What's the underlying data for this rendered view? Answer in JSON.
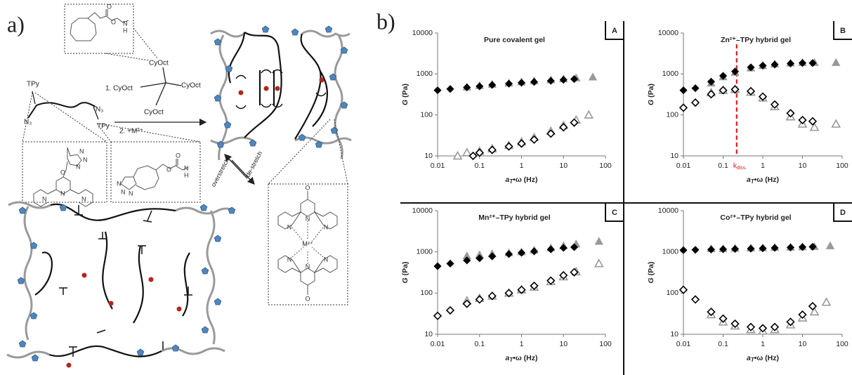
{
  "panel_labels": {
    "a": "a)",
    "b": "b)"
  },
  "diagram": {
    "crosslinker_arms": [
      "CyOct",
      "CyOct",
      "CyOct"
    ],
    "step_1": "1. CyOct",
    "step_2": "2. +M²⁺",
    "polymer_ends": [
      "TPy",
      "TPy",
      "N₃",
      "N₃"
    ],
    "carbamate_atoms": [
      "O",
      "O",
      "N",
      "H"
    ],
    "triazole_atoms": [
      "N",
      "N",
      "N",
      "O",
      "N",
      "N",
      "N"
    ],
    "fused_atoms": [
      "N",
      "N",
      "N",
      "O",
      "O",
      "N",
      "H"
    ],
    "forward_arrow": "overstretch",
    "back_arrow": "de-stretch",
    "complex_atoms": [
      "O",
      "N",
      "N",
      "N",
      "N",
      "N",
      "N",
      "O"
    ],
    "metal": "M²⁺"
  },
  "chart_data": [
    {
      "type": "scatter",
      "panel_label": "A",
      "title": "Pure covalent gel",
      "x_label": {
        "symbol": "a",
        "subscript": "T",
        "rest": "•ω (Hz)"
      },
      "y_label": {
        "symbol": "G",
        "rest": "(Pa)"
      },
      "xscale": "log",
      "yscale": "log",
      "xlim": [
        0.01,
        100
      ],
      "ylim": [
        10,
        10000
      ],
      "xticks": [
        0.01,
        0.1,
        1,
        10,
        100
      ],
      "yticks": [
        10,
        100,
        1000,
        10000
      ],
      "series": [
        {
          "color": "#999999",
          "marker": "triangle",
          "filled": true,
          "x": [
            0.05,
            0.1,
            0.2,
            0.5,
            1,
            2,
            5,
            10,
            20,
            50
          ],
          "values": [
            480,
            520,
            560,
            600,
            640,
            680,
            720,
            760,
            800,
            840
          ]
        },
        {
          "color": "#999999",
          "marker": "triangle",
          "filled": false,
          "x": [
            0.03,
            0.05,
            0.1,
            0.2,
            0.5,
            1,
            2,
            5,
            10,
            20,
            40
          ],
          "values": [
            10,
            12,
            13,
            15,
            18,
            22,
            28,
            40,
            55,
            75,
            100
          ]
        },
        {
          "color": "#000000",
          "marker": "diamond",
          "filled": true,
          "x": [
            0.01,
            0.02,
            0.05,
            0.1,
            0.2,
            0.5,
            1,
            2,
            5,
            10,
            18
          ],
          "values": [
            400,
            430,
            470,
            500,
            540,
            580,
            610,
            640,
            680,
            720,
            750
          ]
        },
        {
          "color": "#000000",
          "marker": "diamond",
          "filled": false,
          "x": [
            0.07,
            0.1,
            0.2,
            0.5,
            1,
            2,
            5,
            10,
            18
          ],
          "values": [
            10,
            12,
            14,
            17,
            20,
            25,
            35,
            50,
            65
          ]
        }
      ]
    },
    {
      "type": "scatter",
      "panel_label": "B",
      "title": "Zn²⁺–TPy hybrid gel",
      "x_label": {
        "symbol": "a",
        "subscript": "T",
        "rest": "•ω (Hz)"
      },
      "y_label": {
        "symbol": "G",
        "rest": "(Pa)"
      },
      "xscale": "log",
      "yscale": "log",
      "xlim": [
        0.01,
        100
      ],
      "ylim": [
        10,
        10000
      ],
      "xticks": [
        0.01,
        0.1,
        1,
        10,
        100
      ],
      "yticks": [
        10,
        100,
        1000,
        10000
      ],
      "annotation": {
        "x": 0.22,
        "text": "k",
        "subscript": "diss.",
        "color": "#d62020"
      },
      "series": [
        {
          "color": "#999999",
          "marker": "triangle",
          "filled": true,
          "x": [
            0.05,
            0.1,
            0.2,
            0.5,
            1,
            2,
            5,
            10,
            20,
            70
          ],
          "values": [
            600,
            850,
            1100,
            1400,
            1600,
            1750,
            1850,
            1900,
            1900,
            1900
          ]
        },
        {
          "color": "#999999",
          "marker": "triangle",
          "filled": false,
          "x": [
            0.05,
            0.1,
            0.2,
            0.5,
            1,
            2,
            5,
            10,
            20,
            70
          ],
          "values": [
            350,
            400,
            420,
            360,
            260,
            160,
            90,
            60,
            50,
            60
          ]
        },
        {
          "color": "#000000",
          "marker": "diamond",
          "filled": true,
          "x": [
            0.01,
            0.02,
            0.05,
            0.1,
            0.2,
            0.5,
            1,
            2,
            5,
            10,
            18
          ],
          "values": [
            400,
            450,
            650,
            900,
            1150,
            1450,
            1600,
            1700,
            1800,
            1850,
            1850
          ]
        },
        {
          "color": "#000000",
          "marker": "diamond",
          "filled": false,
          "x": [
            0.01,
            0.02,
            0.05,
            0.1,
            0.2,
            0.5,
            1,
            2,
            5,
            10,
            18
          ],
          "values": [
            150,
            200,
            320,
            400,
            420,
            380,
            280,
            180,
            110,
            75,
            70
          ]
        }
      ]
    },
    {
      "type": "scatter",
      "panel_label": "C",
      "title": "Mn²⁺–TPy hybrid gel",
      "x_label": {
        "symbol": "a",
        "subscript": "T",
        "rest": "•ω (Hz)"
      },
      "y_label": {
        "symbol": "G",
        "rest": "(Pa)"
      },
      "xscale": "log",
      "yscale": "log",
      "xlim": [
        0.01,
        100
      ],
      "ylim": [
        10,
        10000
      ],
      "xticks": [
        0.01,
        0.1,
        1,
        10,
        100
      ],
      "yticks": [
        10,
        100,
        1000,
        10000
      ],
      "series": [
        {
          "color": "#999999",
          "marker": "triangle",
          "filled": true,
          "x": [
            0.05,
            0.1,
            0.2,
            0.5,
            1,
            2,
            5,
            10,
            20,
            70
          ],
          "values": [
            800,
            850,
            900,
            950,
            1000,
            1100,
            1250,
            1400,
            1550,
            1800
          ]
        },
        {
          "color": "#999999",
          "marker": "triangle",
          "filled": false,
          "x": [
            0.05,
            0.1,
            0.2,
            0.5,
            1,
            2,
            5,
            10,
            20,
            70
          ],
          "values": [
            65,
            75,
            85,
            100,
            120,
            140,
            190,
            250,
            330,
            520
          ]
        },
        {
          "color": "#000000",
          "marker": "diamond",
          "filled": true,
          "x": [
            0.01,
            0.02,
            0.05,
            0.1,
            0.2,
            0.5,
            1,
            2,
            5,
            10,
            18
          ],
          "values": [
            450,
            520,
            620,
            700,
            780,
            880,
            950,
            1030,
            1150,
            1250,
            1300
          ]
        },
        {
          "color": "#000000",
          "marker": "diamond",
          "filled": false,
          "x": [
            0.01,
            0.02,
            0.05,
            0.1,
            0.2,
            0.5,
            1,
            2,
            5,
            10,
            18
          ],
          "values": [
            28,
            38,
            55,
            70,
            85,
            100,
            120,
            150,
            200,
            270,
            320
          ]
        }
      ]
    },
    {
      "type": "scatter",
      "panel_label": "D",
      "title": "Co²⁺–TPy hybrid gel",
      "x_label": {
        "symbol": "a",
        "subscript": "T",
        "rest": "•ω (Hz)"
      },
      "y_label": {
        "symbol": "G",
        "rest": "(Pa)"
      },
      "xscale": "log",
      "yscale": "log",
      "xlim": [
        0.01,
        100
      ],
      "ylim": [
        10,
        10000
      ],
      "xticks": [
        0.01,
        0.1,
        1,
        10,
        100
      ],
      "yticks": [
        10,
        100,
        1000,
        10000
      ],
      "series": [
        {
          "color": "#999999",
          "marker": "triangle",
          "filled": true,
          "x": [
            0.05,
            0.1,
            0.2,
            0.5,
            1,
            2,
            5,
            10,
            20,
            50
          ],
          "values": [
            1200,
            1200,
            1220,
            1240,
            1260,
            1280,
            1300,
            1330,
            1350,
            1400
          ]
        },
        {
          "color": "#999999",
          "marker": "triangle",
          "filled": false,
          "x": [
            0.05,
            0.1,
            0.2,
            0.5,
            1,
            2,
            5,
            10,
            20,
            40
          ],
          "values": [
            30,
            20,
            16,
            13,
            12,
            13,
            17,
            25,
            35,
            60
          ]
        },
        {
          "color": "#000000",
          "marker": "diamond",
          "filled": true,
          "x": [
            0.01,
            0.02,
            0.05,
            0.1,
            0.2,
            0.5,
            1,
            2,
            5,
            10,
            18
          ],
          "values": [
            1100,
            1120,
            1140,
            1160,
            1180,
            1200,
            1220,
            1250,
            1280,
            1310,
            1330
          ]
        },
        {
          "color": "#000000",
          "marker": "diamond",
          "filled": false,
          "x": [
            0.01,
            0.02,
            0.05,
            0.1,
            0.2,
            0.5,
            1,
            2,
            5,
            10,
            18
          ],
          "values": [
            120,
            70,
            35,
            24,
            18,
            15,
            14,
            15,
            20,
            30,
            48
          ]
        }
      ]
    }
  ]
}
